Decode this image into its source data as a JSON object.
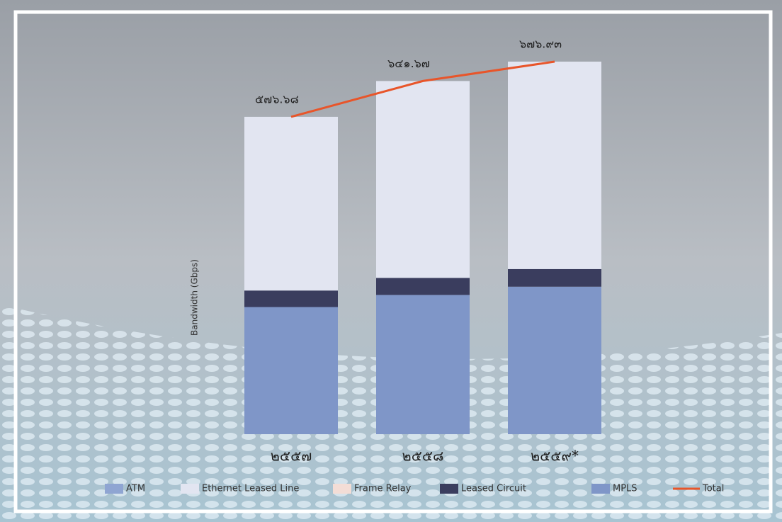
{
  "chart_data": {
    "type": "stacked-bar-line",
    "y_label": "Bandwidth (Gbps)",
    "categories": [
      "๒๕๕๗",
      "๒๕๕๘",
      "๒๕๕๙*"
    ],
    "series": [
      {
        "name": "ATM",
        "color": "#8fa5d2",
        "values": [
          0,
          0,
          0
        ]
      },
      {
        "name": "Ethernet Leased Line",
        "color": "#e2e5f1",
        "values": [
          315.68,
          357.67,
          376.93
        ]
      },
      {
        "name": "Frame Relay",
        "color": "#f3ddd6",
        "values": [
          0,
          0,
          0
        ]
      },
      {
        "name": "Leased Circuit",
        "color": "#3a3d5e",
        "values": [
          30,
          31,
          32
        ]
      },
      {
        "name": "MPLS",
        "color": "#7f96c8",
        "values": [
          231,
          253,
          268
        ]
      },
      {
        "name": "Total",
        "color": "#e8552a",
        "type": "line",
        "values": [
          576.68,
          641.67,
          676.93
        ],
        "value_labels": [
          "๕๗๖.๖๘",
          "๖๔๑.๖๗",
          "๖๗๖.๙๓"
        ]
      }
    ]
  }
}
